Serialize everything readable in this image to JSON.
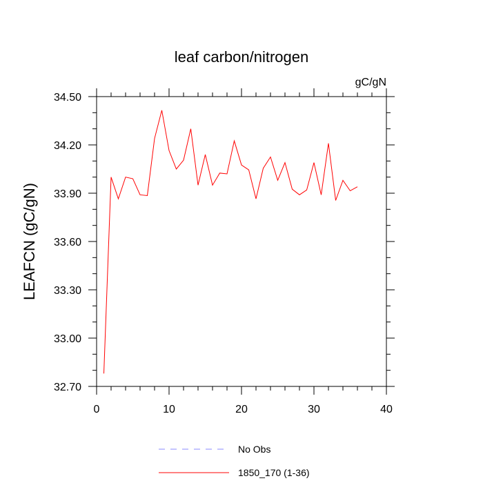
{
  "chart_data": {
    "type": "line",
    "title": "leaf carbon/nitrogen",
    "units": "gC/gN",
    "ylabel": "LEAFCN  (gC/gN)",
    "xlabel": "",
    "xlim": [
      0,
      40
    ],
    "ylim": [
      32.7,
      34.5
    ],
    "xticks": [
      0,
      10,
      20,
      30,
      40
    ],
    "xtick_labels": [
      "0",
      "10",
      "20",
      "30",
      "40"
    ],
    "yticks": [
      32.7,
      33.0,
      33.3,
      33.6,
      33.9,
      34.2,
      34.5
    ],
    "ytick_labels": [
      "32.70",
      "33.00",
      "33.30",
      "33.60",
      "33.90",
      "34.20",
      "34.50"
    ],
    "grid": false,
    "legend_position": "bottom",
    "series": [
      {
        "name": "1850_170 (1-36)",
        "color": "#ff0000",
        "x": [
          1,
          2,
          3,
          4,
          5,
          6,
          7,
          8,
          9,
          10,
          11,
          12,
          13,
          14,
          15,
          16,
          17,
          18,
          19,
          20,
          21,
          22,
          23,
          24,
          25,
          26,
          27,
          28,
          29,
          30,
          31,
          32,
          33,
          34,
          35,
          36
        ],
        "y": [
          32.78,
          34.0,
          33.865,
          34.0,
          33.99,
          33.89,
          33.885,
          34.24,
          34.415,
          34.165,
          34.05,
          34.105,
          34.3,
          33.95,
          34.14,
          33.95,
          34.025,
          34.02,
          34.225,
          34.075,
          34.045,
          33.865,
          34.055,
          34.125,
          33.98,
          34.09,
          33.925,
          33.89,
          33.92,
          34.09,
          33.89,
          34.21,
          33.855,
          33.98,
          33.915,
          33.94
        ]
      }
    ],
    "legend": [
      {
        "label": "No Obs",
        "color": "#8888ff",
        "style": "dashed"
      },
      {
        "label": "1850_170 (1-36)",
        "color": "#ff0000",
        "style": "solid"
      }
    ]
  }
}
